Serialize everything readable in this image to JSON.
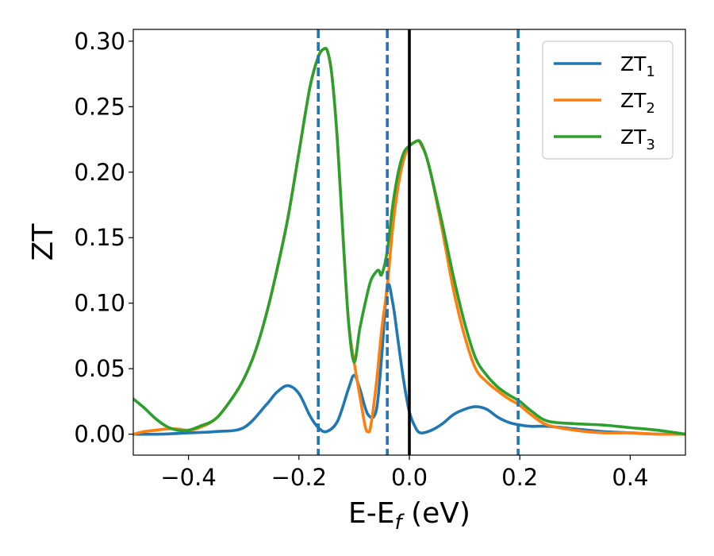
{
  "chart_data": {
    "type": "line",
    "xlabel": "E-E",
    "xlabel_sub": "f",
    "xlabel_unit": " (eV)",
    "ylabel": "ZT",
    "xlim": [
      -0.5,
      0.5
    ],
    "ylim": [
      -0.016,
      0.309
    ],
    "xticks": [
      -0.4,
      -0.2,
      0.0,
      0.2,
      0.4
    ],
    "xtick_labels": [
      "−0.4",
      "−0.2",
      "0.0",
      "0.2",
      "0.4"
    ],
    "yticks": [
      0.0,
      0.05,
      0.1,
      0.15,
      0.2,
      0.25,
      0.3
    ],
    "ytick_labels": [
      "0.00",
      "0.05",
      "0.10",
      "0.15",
      "0.20",
      "0.25",
      "0.30"
    ],
    "grid": false,
    "legend_position": "top-right",
    "vlines_dashed": [
      -0.165,
      -0.04,
      0.197
    ],
    "vline_solid": 0.0,
    "colors": {
      "ZT1": "#1f77b4",
      "ZT2": "#ff7f0e",
      "ZT3": "#2ca02c",
      "dashed": "#1f77b4",
      "solid": "#000000"
    },
    "series": [
      {
        "name": "ZT",
        "sub": "1",
        "color": "#1f77b4",
        "x": [
          -0.5,
          -0.45,
          -0.4,
          -0.35,
          -0.3,
          -0.26,
          -0.24,
          -0.22,
          -0.2,
          -0.18,
          -0.165,
          -0.15,
          -0.13,
          -0.11,
          -0.1,
          -0.09,
          -0.075,
          -0.06,
          -0.05,
          -0.04,
          -0.03,
          -0.02,
          -0.01,
          0.0,
          0.01,
          0.02,
          0.04,
          0.06,
          0.08,
          0.1,
          0.12,
          0.14,
          0.16,
          0.18,
          0.2,
          0.22,
          0.25,
          0.3,
          0.35,
          0.4,
          0.45,
          0.5
        ],
        "y": [
          0.0,
          0.0,
          0.001,
          0.002,
          0.005,
          0.022,
          0.032,
          0.037,
          0.031,
          0.014,
          0.005,
          0.002,
          0.01,
          0.035,
          0.045,
          0.035,
          0.015,
          0.018,
          0.06,
          0.113,
          0.1,
          0.07,
          0.04,
          0.017,
          0.006,
          0.001,
          0.003,
          0.008,
          0.015,
          0.019,
          0.021,
          0.019,
          0.013,
          0.009,
          0.007,
          0.006,
          0.006,
          0.004,
          0.002,
          0.001,
          0.0,
          0.0
        ]
      },
      {
        "name": "ZT",
        "sub": "2",
        "color": "#ff7f0e",
        "x": [
          -0.5,
          -0.48,
          -0.46,
          -0.44,
          -0.42,
          -0.4,
          -0.38,
          -0.35,
          -0.32,
          -0.3,
          -0.28,
          -0.26,
          -0.24,
          -0.22,
          -0.2,
          -0.18,
          -0.165,
          -0.155,
          -0.148,
          -0.14,
          -0.13,
          -0.12,
          -0.11,
          -0.1,
          -0.09,
          -0.08,
          -0.075,
          -0.07,
          -0.06,
          -0.05,
          -0.04,
          -0.03,
          -0.02,
          -0.01,
          0.0,
          0.01,
          0.015,
          0.02,
          0.03,
          0.04,
          0.06,
          0.08,
          0.1,
          0.12,
          0.14,
          0.16,
          0.18,
          0.2,
          0.22,
          0.25,
          0.3,
          0.35,
          0.4,
          0.45,
          0.5
        ],
        "y": [
          0.0,
          0.002,
          0.003,
          0.004,
          0.004,
          0.003,
          0.005,
          0.012,
          0.028,
          0.042,
          0.062,
          0.09,
          0.125,
          0.165,
          0.215,
          0.265,
          0.288,
          0.294,
          0.292,
          0.273,
          0.222,
          0.15,
          0.085,
          0.055,
          0.03,
          0.006,
          0.002,
          0.006,
          0.038,
          0.08,
          0.113,
          0.158,
          0.19,
          0.21,
          0.22,
          0.223,
          0.224,
          0.222,
          0.213,
          0.197,
          0.155,
          0.11,
          0.075,
          0.05,
          0.04,
          0.033,
          0.027,
          0.022,
          0.015,
          0.007,
          0.003,
          0.001,
          0.001,
          0.0,
          0.0
        ]
      },
      {
        "name": "ZT",
        "sub": "3",
        "color": "#2ca02c",
        "x": [
          -0.5,
          -0.48,
          -0.46,
          -0.44,
          -0.42,
          -0.4,
          -0.38,
          -0.35,
          -0.32,
          -0.3,
          -0.28,
          -0.26,
          -0.24,
          -0.22,
          -0.2,
          -0.18,
          -0.165,
          -0.155,
          -0.148,
          -0.14,
          -0.13,
          -0.12,
          -0.11,
          -0.1,
          -0.09,
          -0.08,
          -0.07,
          -0.06,
          -0.055,
          -0.05,
          -0.04,
          -0.03,
          -0.02,
          -0.01,
          0.0,
          0.01,
          0.015,
          0.02,
          0.03,
          0.04,
          0.06,
          0.08,
          0.1,
          0.12,
          0.14,
          0.16,
          0.18,
          0.2,
          0.22,
          0.25,
          0.3,
          0.35,
          0.4,
          0.45,
          0.5
        ],
        "y": [
          0.027,
          0.02,
          0.012,
          0.006,
          0.003,
          0.003,
          0.006,
          0.012,
          0.028,
          0.042,
          0.062,
          0.09,
          0.125,
          0.165,
          0.215,
          0.265,
          0.288,
          0.294,
          0.292,
          0.273,
          0.222,
          0.15,
          0.085,
          0.055,
          0.08,
          0.1,
          0.117,
          0.124,
          0.125,
          0.122,
          0.14,
          0.175,
          0.2,
          0.215,
          0.22,
          0.223,
          0.224,
          0.223,
          0.213,
          0.197,
          0.16,
          0.12,
          0.085,
          0.058,
          0.045,
          0.036,
          0.03,
          0.025,
          0.018,
          0.01,
          0.008,
          0.007,
          0.005,
          0.003,
          0.0
        ]
      }
    ]
  }
}
